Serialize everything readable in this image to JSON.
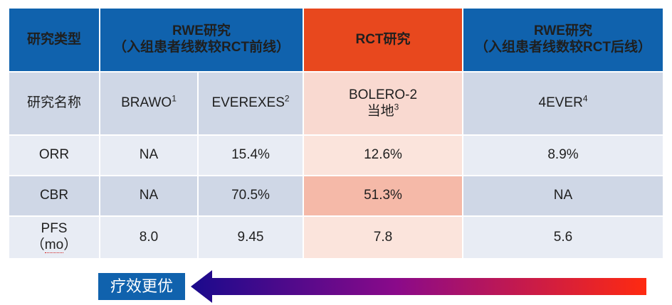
{
  "table": {
    "header": {
      "c0": "研究类型",
      "rwe_before_title": "RWE研究",
      "rwe_before_sub": "（入组患者线数较RCT前线）",
      "rct_title": "RCT研究",
      "rwe_after_title": "RWE研究",
      "rwe_after_sub": "（入组患者线数较RCT后线）"
    },
    "rows": {
      "name": {
        "label": "研究名称",
        "brawo": "BRAWO",
        "brawo_sup": "1",
        "everexes": "EVEREXES",
        "everexes_sup": "2",
        "bolero_line1": "BOLERO-2",
        "bolero_line2": "当地",
        "bolero_sup": "3",
        "ever4": "4EVER",
        "ever4_sup": "4"
      },
      "orr": {
        "label": "ORR",
        "brawo": "NA",
        "everexes": "15.4%",
        "bolero": "12.6%",
        "ever4": "8.9%"
      },
      "cbr": {
        "label": "CBR",
        "brawo": "NA",
        "everexes": "70.5%",
        "bolero": "51.3%",
        "ever4": "NA"
      },
      "pfs": {
        "label_line1": "PFS",
        "label_line2_open": "（",
        "label_line2_unit": "mo",
        "label_line2_close": "）",
        "brawo": "8.0",
        "everexes": "9.45",
        "bolero": "7.8",
        "ever4": "5.6"
      }
    }
  },
  "legend": {
    "label": "疗效更优"
  },
  "colors": {
    "header_blue": "#1062ad",
    "rct_orange": "#e8481e",
    "arrow_start": "#1a0a8c",
    "arrow_end": "#ff2a10"
  }
}
